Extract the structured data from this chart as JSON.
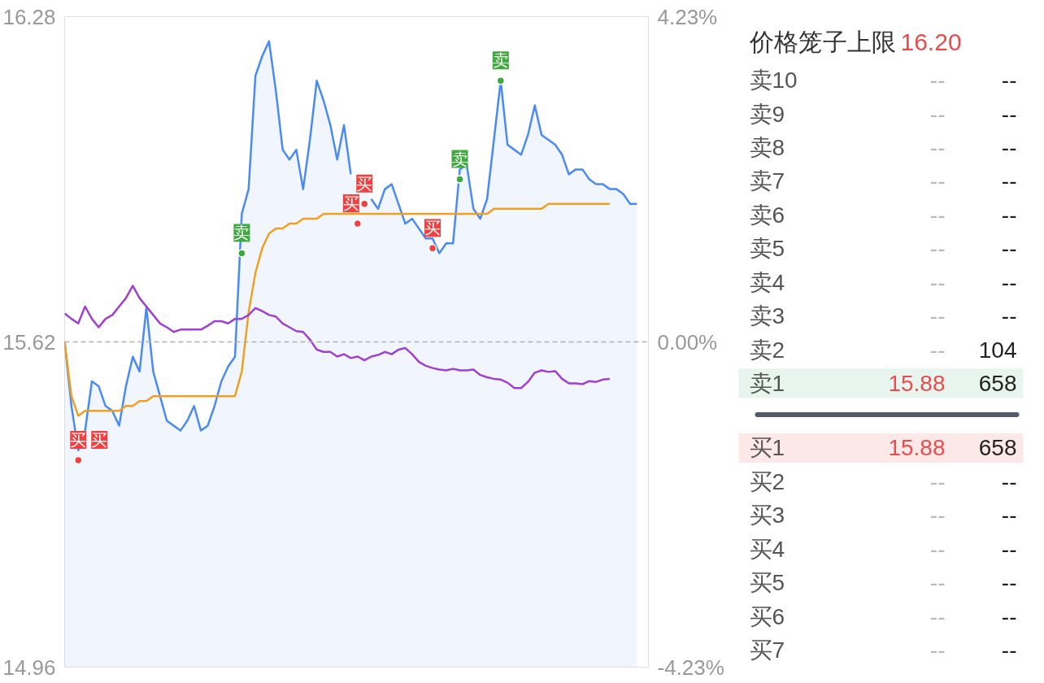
{
  "chart_data": [
    {
      "type": "line",
      "ylim": [
        14.96,
        16.28
      ],
      "y2lim": [
        -4.23,
        4.23
      ],
      "categories": [
        null,
        null,
        null,
        null,
        null,
        null,
        null,
        null,
        null,
        null,
        null,
        null,
        null,
        null,
        null,
        null,
        null,
        null,
        null,
        null,
        null,
        null,
        null,
        null,
        null,
        null,
        null,
        null,
        null,
        null,
        null,
        null,
        null,
        null,
        null,
        null,
        null,
        null,
        null,
        null,
        null,
        null,
        null,
        null,
        null,
        null,
        null,
        null,
        null,
        null,
        null,
        null,
        null,
        null,
        null,
        null,
        null,
        null,
        null,
        null,
        null,
        null,
        null,
        null,
        null,
        null,
        null,
        null,
        null,
        null,
        null,
        null,
        null,
        null,
        null,
        null,
        null,
        null,
        null,
        null,
        null,
        null,
        null,
        null,
        null
      ],
      "yticks": [
        14.96,
        15.62,
        16.28
      ],
      "y2ticks": [
        {
          "value": -4.23,
          "label": "-4.23%"
        },
        {
          "value": 0,
          "label": "0.00%"
        },
        {
          "value": 4.23,
          "label": "4.23%"
        }
      ],
      "ref_lines": [
        {
          "axis": "y",
          "value": 15.62,
          "color": "#b0b0b0",
          "line_style": "dashed"
        }
      ],
      "series": [
        {
          "type": "area",
          "color": "#4a8af4",
          "values": [
            15.62,
            15.49,
            15.4,
            15.44,
            15.54,
            15.53,
            15.49,
            15.48,
            15.45,
            15.53,
            15.59,
            15.56,
            15.69,
            15.56,
            15.51,
            15.46,
            15.45,
            15.44,
            15.46,
            15.49,
            15.44,
            15.45,
            15.49,
            15.54,
            15.57,
            15.59,
            15.88,
            15.93,
            16.16,
            16.2,
            16.23,
            16.13,
            16.01,
            15.99,
            16.01,
            15.93,
            16.03,
            16.15,
            16.11,
            16.06,
            15.99,
            16.06,
            15.96,
            null,
            null,
            15.91,
            15.89,
            15.93,
            15.94,
            15.9,
            15.86,
            15.87,
            15.85,
            15.83,
            15.83,
            15.8,
            15.82,
            15.82,
            15.97,
            15.98,
            15.89,
            15.87,
            15.91,
            16.03,
            16.15,
            16.02,
            16.01,
            16.0,
            16.04,
            16.1,
            16.04,
            16.03,
            16.02,
            16.0,
            15.96,
            15.97,
            15.97,
            15.95,
            15.94,
            15.94,
            15.93,
            15.93,
            15.92,
            15.9,
            15.9
          ]
        },
        {
          "color": "#f0a020",
          "values": [
            15.62,
            15.51,
            15.47,
            15.48,
            15.48,
            15.48,
            15.48,
            15.48,
            15.48,
            15.49,
            15.49,
            15.5,
            15.5,
            15.51,
            15.51,
            15.51,
            15.51,
            15.51,
            15.51,
            15.51,
            15.51,
            15.51,
            15.51,
            15.51,
            15.51,
            15.51,
            15.56,
            15.68,
            15.76,
            15.81,
            15.84,
            15.85,
            15.85,
            15.86,
            15.86,
            15.87,
            15.87,
            15.87,
            15.88,
            15.88,
            15.88,
            15.88,
            15.88,
            15.88,
            15.88,
            15.88,
            15.88,
            15.88,
            15.88,
            15.88,
            15.88,
            15.88,
            15.88,
            15.88,
            15.88,
            15.88,
            15.88,
            15.88,
            15.88,
            15.88,
            15.88,
            15.88,
            15.88,
            15.89,
            15.89,
            15.89,
            15.89,
            15.89,
            15.89,
            15.89,
            15.89,
            15.9,
            15.9,
            15.9,
            15.9,
            15.9,
            15.9,
            15.9,
            15.9,
            15.9,
            15.9,
            null,
            null,
            null,
            null
          ]
        },
        {
          "color": "#a040d0",
          "axis": "y2",
          "values": [
            0.37,
            0.3,
            0.24,
            0.46,
            0.3,
            0.19,
            0.3,
            0.35,
            0.46,
            0.57,
            0.73,
            0.57,
            0.46,
            0.35,
            0.24,
            0.19,
            0.13,
            0.16,
            0.16,
            0.16,
            0.16,
            0.21,
            0.27,
            0.27,
            0.24,
            0.3,
            0.3,
            0.35,
            0.44,
            0.4,
            0.35,
            0.33,
            0.24,
            0.19,
            0.14,
            0.13,
            0.03,
            -0.1,
            -0.13,
            -0.13,
            -0.19,
            -0.16,
            -0.21,
            -0.19,
            -0.24,
            -0.19,
            -0.17,
            -0.13,
            -0.16,
            -0.1,
            -0.08,
            -0.16,
            -0.26,
            -0.31,
            -0.34,
            -0.36,
            -0.37,
            -0.35,
            -0.37,
            -0.37,
            -0.36,
            -0.43,
            -0.46,
            -0.48,
            -0.49,
            -0.53,
            -0.6,
            -0.6,
            -0.52,
            -0.4,
            -0.37,
            -0.39,
            -0.38,
            -0.48,
            -0.54,
            -0.54,
            -0.55,
            -0.51,
            -0.52,
            -0.49,
            -0.48,
            null,
            null,
            null,
            null
          ]
        },
        {
          "type": "scatter",
          "marker": "circle",
          "color": "#f04040",
          "values": [
            null,
            null,
            15.38,
            null,
            null,
            null,
            null,
            null,
            null,
            null,
            null,
            null,
            null,
            null,
            null,
            null,
            null,
            null,
            null,
            null,
            null,
            null,
            null,
            null,
            null,
            null,
            null,
            null,
            null,
            null,
            null,
            null,
            null,
            null,
            null,
            null,
            null,
            null,
            null,
            null,
            null,
            null,
            null,
            15.86,
            15.9,
            null,
            null,
            null,
            null,
            null,
            null,
            null,
            null,
            null,
            15.81,
            null,
            null,
            null,
            null,
            null,
            null,
            null,
            null,
            null,
            null,
            null,
            null,
            null,
            null,
            null,
            null,
            null,
            null,
            null,
            null,
            null,
            null,
            null,
            null,
            null,
            null,
            null,
            null,
            null,
            null
          ]
        },
        {
          "type": "scatter",
          "marker": "circle",
          "color": "#3cab3c",
          "values": [
            null,
            null,
            null,
            null,
            null,
            null,
            null,
            null,
            null,
            null,
            null,
            null,
            null,
            null,
            null,
            null,
            null,
            null,
            null,
            null,
            null,
            null,
            null,
            null,
            null,
            null,
            15.8,
            null,
            null,
            null,
            null,
            null,
            null,
            null,
            null,
            null,
            null,
            null,
            null,
            null,
            null,
            null,
            null,
            null,
            null,
            null,
            null,
            null,
            null,
            null,
            null,
            null,
            null,
            null,
            null,
            null,
            null,
            null,
            15.95,
            null,
            null,
            null,
            null,
            null,
            16.15,
            null,
            null,
            null,
            null,
            null,
            null,
            null,
            null,
            null,
            null,
            null,
            null,
            null,
            null,
            null,
            null,
            null,
            null,
            null,
            null
          ]
        }
      ],
      "annotations": [
        {
          "text": "买",
          "y": 15.38
        },
        "买",
        {
          "text": "卖",
          "y": 15.8
        },
        {
          "text": "买",
          "y": 15.86
        },
        {
          "text": "买",
          "y": 15.9
        },
        {
          "text": "买",
          "y": 15.81
        },
        {
          "text": "卖",
          "y": 15.95
        },
        {
          "text": "卖",
          "y": 16.15
        }
      ]
    },
    {
      "type": "other",
      "title": "价格笼子上限",
      "subtitle": "16.20",
      "categories": [
        "卖10",
        "卖9",
        "卖8",
        "卖7",
        "卖6",
        "卖5",
        "卖4",
        "卖3",
        "卖2",
        "卖1",
        "买1",
        "买2",
        "买3",
        "买4",
        "买5",
        "买6",
        "买7"
      ],
      "annotations": [
        "--",
        "--",
        "--",
        "--",
        "--",
        "--",
        "--",
        "--",
        "--",
        "--",
        "--",
        "--",
        "--",
        "--",
        "--",
        "--",
        "--",
        "104",
        "15.88",
        "658",
        "15.88",
        "658",
        "--",
        "--",
        "--",
        "--",
        "--",
        "--",
        "--",
        "--",
        "--",
        "--",
        "--",
        "--"
      ]
    }
  ]
}
